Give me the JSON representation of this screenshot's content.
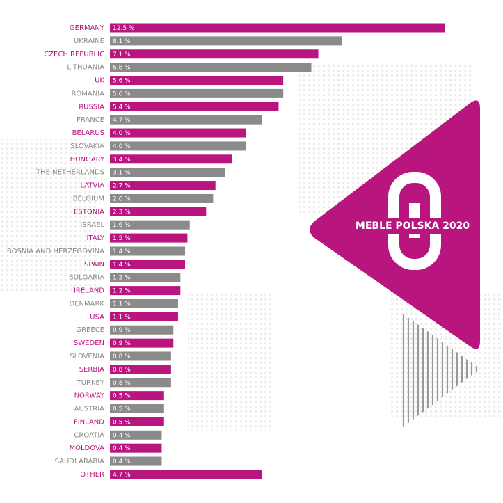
{
  "chart_data": {
    "type": "bar",
    "categories": [
      "GERMANY",
      "UKRAINE",
      "CZECH REPUBLIC",
      "LITHUANIA",
      "UK",
      "ROMANIA",
      "RUSSIA",
      "FRANCE",
      "BELARUS",
      "SLOVAKIA",
      "HUNGARY",
      "THE NETHERLANDS",
      "LATVIA",
      "BELGIUM",
      "ESTONIA",
      "ISRAEL",
      "ITALY",
      "BOSNIA AND HERZEGOVINA",
      "SPAIN",
      "BULGARIA",
      "IRELAND",
      "DENMARK",
      "USA",
      "GREECE",
      "SWEDEN",
      "SLOVENIA",
      "SERBIA",
      "TURKEY",
      "NORWAY",
      "AUSTRIA",
      "FINLAND",
      "CROATIA",
      "MOLDOVA",
      "SAUDI ARABIA",
      "OTHER"
    ],
    "values": [
      12.5,
      8.1,
      7.1,
      6.8,
      5.6,
      5.6,
      5.4,
      4.7,
      4.0,
      4.0,
      3.4,
      3.1,
      2.7,
      2.6,
      2.3,
      1.6,
      1.5,
      1.4,
      1.4,
      1.2,
      1.2,
      1.1,
      1.1,
      0.9,
      0.9,
      0.8,
      0.8,
      0.8,
      0.5,
      0.5,
      0.5,
      0.4,
      0.4,
      0.4,
      4.7
    ],
    "value_labels": [
      "12.5 %",
      "8.1 %",
      "7.1 %",
      "6.8 %",
      "5.6 %",
      "5.6 %",
      "5.4 %",
      "4.7 %",
      "4.0 %",
      "4.0 %",
      "3.4 %",
      "3.1 %",
      "2.7 %",
      "2.6 %",
      "2.3 %",
      "1.6 %",
      "1.5 %",
      "1.4 %",
      "1.4 %",
      "1.2 %",
      "1.2 %",
      "1.1 %",
      "1.1 %",
      "0.9 %",
      "0.9 %",
      "0.8 %",
      "0.8 %",
      "0.8 %",
      "0.5 %",
      "0.5 %",
      "0.5 %",
      "0.4 %",
      "0.4 %",
      "0.4 %",
      "4.7 %"
    ],
    "colors": [
      "#b8157f",
      "#8a8a8a"
    ],
    "annotations": [
      "MEBLE POLSKA 2020"
    ]
  }
}
